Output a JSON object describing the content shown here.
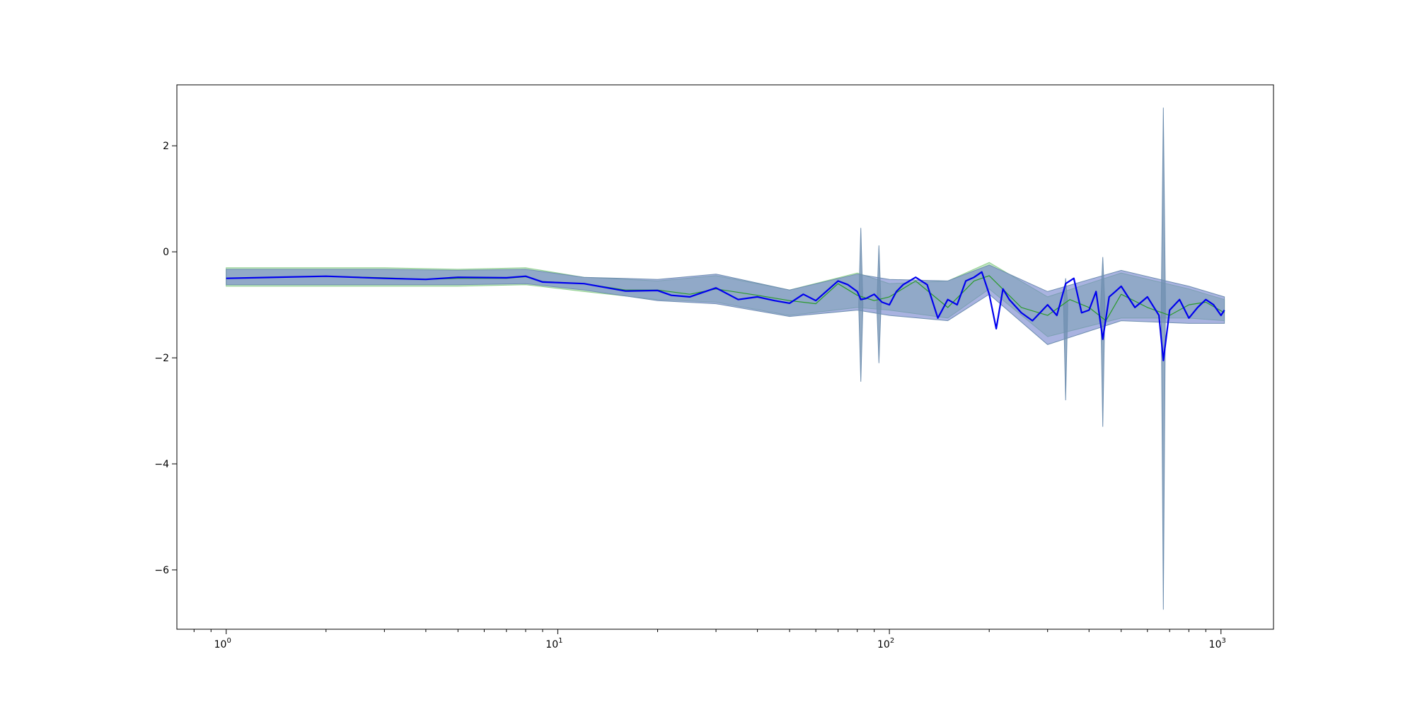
{
  "chart_data": {
    "type": "line",
    "title": "",
    "xlabel": "",
    "ylabel": "",
    "xscale": "log",
    "xlim": [
      0.71,
      1440
    ],
    "ylim": [
      -7.12,
      3.15
    ],
    "grid": false,
    "legend": "none",
    "x_ticks": [
      {
        "base": "10",
        "exp": "0",
        "value": 1
      },
      {
        "base": "10",
        "exp": "1",
        "value": 10
      },
      {
        "base": "10",
        "exp": "2",
        "value": 100
      },
      {
        "base": "10",
        "exp": "3",
        "value": 1000
      }
    ],
    "y_ticks": [
      {
        "label": "2",
        "value": 2
      },
      {
        "label": "0",
        "value": 0
      },
      {
        "label": "−2",
        "value": -2
      },
      {
        "label": "−4",
        "value": -4
      },
      {
        "label": "−6",
        "value": -6
      }
    ],
    "colors": {
      "line_blue": "#0000ee",
      "line_green": "#2a9a2a",
      "band_blue": "#7080cc",
      "band_green": "#8fcf8f",
      "band_steel": "#6f8fb0"
    },
    "series": [
      {
        "style": "thin-green-line",
        "x": [
          1,
          2,
          3,
          4,
          5,
          7,
          8,
          9,
          12,
          16,
          20,
          25,
          30,
          40,
          50,
          60,
          70,
          80,
          90,
          100,
          120,
          150,
          180,
          200,
          250,
          300,
          350,
          400,
          450,
          500,
          600,
          700,
          800,
          900,
          1024
        ],
        "y": [
          -0.5,
          -0.46,
          -0.49,
          -0.52,
          -0.5,
          -0.5,
          -0.47,
          -0.56,
          -0.6,
          -0.72,
          -0.72,
          -0.8,
          -0.7,
          -0.82,
          -0.92,
          -0.98,
          -0.6,
          -0.82,
          -0.92,
          -0.85,
          -0.55,
          -1.05,
          -0.55,
          -0.45,
          -1.05,
          -1.2,
          -0.9,
          -1.05,
          -1.3,
          -0.8,
          -1.05,
          -1.2,
          -1.0,
          -0.95,
          -1.15
        ]
      },
      {
        "style": "thick-blue-line",
        "x": [
          1,
          2,
          3,
          4,
          5,
          7,
          8,
          9,
          12,
          16,
          20,
          22,
          25,
          30,
          35,
          40,
          45,
          50,
          55,
          60,
          70,
          75,
          80,
          82,
          85,
          90,
          95,
          100,
          105,
          110,
          120,
          130,
          140,
          150,
          160,
          170,
          180,
          190,
          200,
          210,
          220,
          230,
          250,
          270,
          300,
          320,
          340,
          360,
          380,
          400,
          420,
          440,
          460,
          480,
          500,
          550,
          600,
          650,
          670,
          700,
          750,
          800,
          850,
          900,
          950,
          1000,
          1024
        ],
        "y": [
          -0.5,
          -0.46,
          -0.5,
          -0.52,
          -0.48,
          -0.49,
          -0.46,
          -0.57,
          -0.6,
          -0.74,
          -0.73,
          -0.82,
          -0.85,
          -0.68,
          -0.9,
          -0.85,
          -0.92,
          -0.97,
          -0.8,
          -0.92,
          -0.55,
          -0.62,
          -0.75,
          -0.9,
          -0.88,
          -0.8,
          -0.95,
          -1.0,
          -0.75,
          -0.62,
          -0.48,
          -0.62,
          -1.25,
          -0.9,
          -1.0,
          -0.55,
          -0.48,
          -0.38,
          -0.8,
          -1.45,
          -0.7,
          -0.9,
          -1.15,
          -1.3,
          -1.0,
          -1.2,
          -0.6,
          -0.5,
          -1.15,
          -1.1,
          -0.75,
          -1.65,
          -0.85,
          -0.75,
          -0.65,
          -1.05,
          -0.85,
          -1.2,
          -2.05,
          -1.1,
          -0.9,
          -1.25,
          -1.05,
          -0.9,
          -1.0,
          -1.2,
          -1.1
        ]
      }
    ],
    "bands": [
      {
        "style": "green-band",
        "x": [
          1,
          3,
          5,
          8,
          12,
          20,
          30,
          50,
          80,
          100,
          150,
          200,
          300,
          500,
          800,
          1024
        ],
        "lower": [
          -0.65,
          -0.65,
          -0.65,
          -0.62,
          -0.75,
          -0.9,
          -0.95,
          -1.2,
          -1.05,
          -1.1,
          -1.25,
          -0.7,
          -1.6,
          -1.25,
          -1.25,
          -1.3
        ],
        "upper": [
          -0.3,
          -0.3,
          -0.33,
          -0.3,
          -0.48,
          -0.55,
          -0.45,
          -0.72,
          -0.4,
          -0.6,
          -0.55,
          -0.2,
          -0.85,
          -0.4,
          -0.7,
          -0.9
        ]
      },
      {
        "style": "blue-band",
        "x": [
          1,
          3,
          5,
          8,
          12,
          20,
          30,
          50,
          80,
          100,
          150,
          200,
          300,
          500,
          800,
          1024
        ],
        "lower": [
          -0.62,
          -0.62,
          -0.62,
          -0.6,
          -0.72,
          -0.92,
          -0.98,
          -1.22,
          -1.1,
          -1.2,
          -1.3,
          -0.8,
          -1.75,
          -1.3,
          -1.35,
          -1.35
        ],
        "upper": [
          -0.33,
          -0.33,
          -0.35,
          -0.33,
          -0.48,
          -0.52,
          -0.42,
          -0.72,
          -0.42,
          -0.52,
          -0.55,
          -0.25,
          -0.75,
          -0.35,
          -0.65,
          -0.85
        ]
      }
    ],
    "spikes": [
      {
        "x": 82,
        "low": -2.45,
        "high": 0.45
      },
      {
        "x": 93,
        "low": -2.1,
        "high": 0.12
      },
      {
        "x": 340,
        "low": -2.8,
        "high": -0.5
      },
      {
        "x": 440,
        "low": -3.3,
        "high": -0.1
      },
      {
        "x": 670,
        "low": -6.75,
        "high": 2.72
      }
    ]
  }
}
